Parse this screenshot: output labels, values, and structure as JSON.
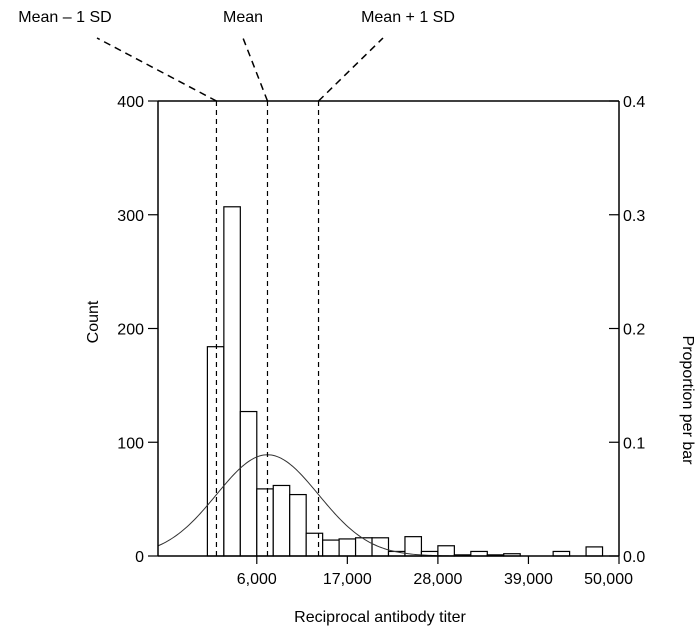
{
  "chart_data": {
    "type": "bar",
    "xlabel": "Reciprocal antibody titer",
    "ylabel": "Count",
    "y2label": "Proportion per bar",
    "xlim": [
      -6000,
      50000
    ],
    "ylim": [
      0,
      400
    ],
    "y2lim": [
      0,
      0.4
    ],
    "xticks": [
      6000,
      17000,
      28000,
      39000,
      50000
    ],
    "xtick_labels": [
      "6,000",
      "17,000",
      "28,000",
      "39,000",
      "50,000"
    ],
    "yticks": [
      0,
      100,
      200,
      300,
      400
    ],
    "ytick_labels": [
      "0",
      "100",
      "200",
      "300",
      "400"
    ],
    "y2ticks": [
      0.0,
      0.1,
      0.2,
      0.3,
      0.4
    ],
    "y2tick_labels": [
      "0.0",
      "0.1",
      "0.2",
      "0.3",
      "0.4"
    ],
    "bin_width": 2000,
    "bins": [
      {
        "x0": 0,
        "count": 184
      },
      {
        "x0": 2000,
        "count": 307
      },
      {
        "x0": 4000,
        "count": 127
      },
      {
        "x0": 6000,
        "count": 59
      },
      {
        "x0": 8000,
        "count": 62
      },
      {
        "x0": 10000,
        "count": 54
      },
      {
        "x0": 12000,
        "count": 20
      },
      {
        "x0": 14000,
        "count": 14
      },
      {
        "x0": 16000,
        "count": 15
      },
      {
        "x0": 18000,
        "count": 16
      },
      {
        "x0": 20000,
        "count": 16
      },
      {
        "x0": 22000,
        "count": 4
      },
      {
        "x0": 24000,
        "count": 17
      },
      {
        "x0": 26000,
        "count": 4
      },
      {
        "x0": 28000,
        "count": 9
      },
      {
        "x0": 30000,
        "count": 1
      },
      {
        "x0": 32000,
        "count": 4
      },
      {
        "x0": 34000,
        "count": 1
      },
      {
        "x0": 36000,
        "count": 2
      },
      {
        "x0": 38000,
        "count": 0
      },
      {
        "x0": 40000,
        "count": 0
      },
      {
        "x0": 42000,
        "count": 4
      },
      {
        "x0": 44000,
        "count": 0
      },
      {
        "x0": 46000,
        "count": 8
      },
      {
        "x0": 48000,
        "count": 0
      },
      {
        "x0": 50000,
        "count": 3
      }
    ],
    "normal_curve": {
      "mean": 7300,
      "sd": 6200,
      "peak_count": 89
    },
    "reference_lines": [
      {
        "label": "Mean – 1 SD",
        "x": 1100
      },
      {
        "label": "Mean",
        "x": 7300
      },
      {
        "label": "Mean + 1 SD",
        "x": 13500
      }
    ],
    "grid": false,
    "legend": "none"
  }
}
